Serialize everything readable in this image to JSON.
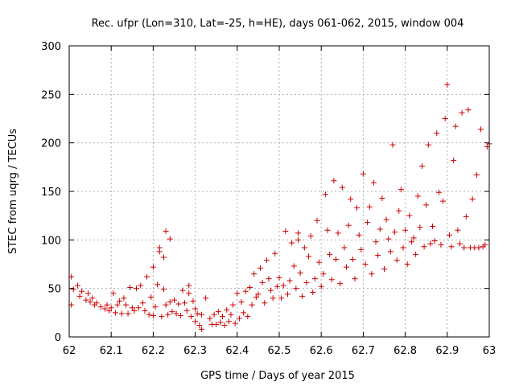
{
  "chart_data": {
    "type": "scatter",
    "title": "Rec. ufpr (Lon=310, Lat=-25, h=HE), days 061-062, 2015, window 004",
    "xlabel": "GPS time / Days of year 2015",
    "ylabel": "STEC from uqrg / TECUs",
    "xlim": [
      62,
      63
    ],
    "ylim": [
      0,
      300
    ],
    "x_ticks": [
      "62",
      "62.1",
      "62.2",
      "62.3",
      "62.4",
      "62.5",
      "62.6",
      "62.7",
      "62.8",
      "62.9",
      "63"
    ],
    "y_ticks": [
      "0",
      "50",
      "100",
      "150",
      "200",
      "250",
      "300"
    ],
    "grid": true,
    "marker": "+",
    "color": "#cc0000",
    "series": [
      {
        "points": [
          [
            62.005,
            62
          ],
          [
            62.005,
            33
          ],
          [
            62.01,
            49
          ],
          [
            62.02,
            53
          ],
          [
            62.025,
            42
          ],
          [
            62.03,
            47
          ],
          [
            62.04,
            38
          ],
          [
            62.045,
            45
          ],
          [
            62.05,
            36
          ],
          [
            62.055,
            40
          ],
          [
            62.06,
            33
          ],
          [
            62.065,
            35
          ],
          [
            62.075,
            31
          ],
          [
            62.085,
            29
          ],
          [
            62.09,
            33
          ],
          [
            62.095,
            27
          ],
          [
            62.1,
            30
          ],
          [
            62.105,
            45
          ],
          [
            62.11,
            25
          ],
          [
            62.115,
            33
          ],
          [
            62.12,
            37
          ],
          [
            62.125,
            24
          ],
          [
            62.13,
            40
          ],
          [
            62.135,
            33
          ],
          [
            62.14,
            24
          ],
          [
            62.145,
            51
          ],
          [
            62.15,
            30
          ],
          [
            62.155,
            27
          ],
          [
            62.16,
            50
          ],
          [
            62.165,
            30
          ],
          [
            62.17,
            53
          ],
          [
            62.175,
            35
          ],
          [
            62.18,
            27
          ],
          [
            62.185,
            62
          ],
          [
            62.19,
            23
          ],
          [
            62.195,
            41
          ],
          [
            62.2,
            72
          ],
          [
            62.2,
            22
          ],
          [
            62.205,
            31
          ],
          [
            62.21,
            54
          ],
          [
            62.215,
            88
          ],
          [
            62.215,
            92
          ],
          [
            62.22,
            21
          ],
          [
            62.225,
            82
          ],
          [
            62.225,
            49
          ],
          [
            62.23,
            109
          ],
          [
            62.23,
            33
          ],
          [
            62.235,
            23
          ],
          [
            62.24,
            101
          ],
          [
            62.24,
            36
          ],
          [
            62.245,
            26
          ],
          [
            62.25,
            38
          ],
          [
            62.255,
            24
          ],
          [
            62.26,
            34
          ],
          [
            62.265,
            22
          ],
          [
            62.27,
            48
          ],
          [
            62.275,
            35
          ],
          [
            62.28,
            27
          ],
          [
            62.285,
            53
          ],
          [
            62.285,
            45
          ],
          [
            62.29,
            21
          ],
          [
            62.295,
            37
          ],
          [
            62.3,
            29
          ],
          [
            62.3,
            16
          ],
          [
            62.305,
            24
          ],
          [
            62.31,
            12
          ],
          [
            62.315,
            23
          ],
          [
            62.315,
            8
          ],
          [
            62.325,
            40
          ],
          [
            62.335,
            19
          ],
          [
            62.34,
            13
          ],
          [
            62.345,
            23
          ],
          [
            62.35,
            13
          ],
          [
            62.355,
            26
          ],
          [
            62.36,
            15
          ],
          [
            62.365,
            21
          ],
          [
            62.37,
            12
          ],
          [
            62.375,
            28
          ],
          [
            62.38,
            16
          ],
          [
            62.385,
            23
          ],
          [
            62.39,
            33
          ],
          [
            62.395,
            14
          ],
          [
            62.4,
            45
          ],
          [
            62.405,
            19
          ],
          [
            62.41,
            36
          ],
          [
            62.415,
            25
          ],
          [
            62.42,
            47
          ],
          [
            62.425,
            21
          ],
          [
            62.43,
            51
          ],
          [
            62.435,
            33
          ],
          [
            62.44,
            65
          ],
          [
            62.445,
            41
          ],
          [
            62.45,
            44
          ],
          [
            62.455,
            71
          ],
          [
            62.46,
            56
          ],
          [
            62.465,
            35
          ],
          [
            62.47,
            79
          ],
          [
            62.475,
            60
          ],
          [
            62.48,
            48
          ],
          [
            62.485,
            40
          ],
          [
            62.49,
            86
          ],
          [
            62.495,
            52
          ],
          [
            62.5,
            61
          ],
          [
            62.505,
            40
          ],
          [
            62.51,
            53
          ],
          [
            62.515,
            109
          ],
          [
            62.52,
            44
          ],
          [
            62.525,
            58
          ],
          [
            62.53,
            97
          ],
          [
            62.535,
            73
          ],
          [
            62.54,
            50
          ],
          [
            62.545,
            107
          ],
          [
            62.545,
            100
          ],
          [
            62.55,
            66
          ],
          [
            62.555,
            42
          ],
          [
            62.56,
            92
          ],
          [
            62.565,
            56
          ],
          [
            62.57,
            83
          ],
          [
            62.575,
            104
          ],
          [
            62.58,
            46
          ],
          [
            62.585,
            60
          ],
          [
            62.59,
            120
          ],
          [
            62.595,
            77
          ],
          [
            62.6,
            52
          ],
          [
            62.605,
            65
          ],
          [
            62.61,
            147
          ],
          [
            62.615,
            110
          ],
          [
            62.62,
            85
          ],
          [
            62.625,
            59
          ],
          [
            62.63,
            161
          ],
          [
            62.635,
            80
          ],
          [
            62.64,
            107
          ],
          [
            62.645,
            55
          ],
          [
            62.65,
            154
          ],
          [
            62.655,
            92
          ],
          [
            62.66,
            72
          ],
          [
            62.665,
            115
          ],
          [
            62.67,
            142
          ],
          [
            62.675,
            80
          ],
          [
            62.68,
            60
          ],
          [
            62.685,
            133
          ],
          [
            62.69,
            105
          ],
          [
            62.695,
            90
          ],
          [
            62.7,
            168
          ],
          [
            62.705,
            75
          ],
          [
            62.71,
            118
          ],
          [
            62.715,
            134
          ],
          [
            62.72,
            65
          ],
          [
            62.725,
            159
          ],
          [
            62.73,
            98
          ],
          [
            62.735,
            84
          ],
          [
            62.74,
            111
          ],
          [
            62.745,
            143
          ],
          [
            62.75,
            70
          ],
          [
            62.755,
            121
          ],
          [
            62.76,
            101
          ],
          [
            62.765,
            88
          ],
          [
            62.77,
            198
          ],
          [
            62.775,
            108
          ],
          [
            62.78,
            79
          ],
          [
            62.785,
            130
          ],
          [
            62.79,
            152
          ],
          [
            62.795,
            92
          ],
          [
            62.8,
            110
          ],
          [
            62.805,
            75
          ],
          [
            62.81,
            125
          ],
          [
            62.815,
            98
          ],
          [
            62.82,
            102
          ],
          [
            62.825,
            85
          ],
          [
            62.83,
            145
          ],
          [
            62.835,
            113
          ],
          [
            62.84,
            176
          ],
          [
            62.845,
            93
          ],
          [
            62.85,
            136
          ],
          [
            62.855,
            198
          ],
          [
            62.86,
            96
          ],
          [
            62.865,
            114
          ],
          [
            62.87,
            99
          ],
          [
            62.875,
            210
          ],
          [
            62.88,
            149
          ],
          [
            62.885,
            95
          ],
          [
            62.89,
            140
          ],
          [
            62.895,
            225
          ],
          [
            62.9,
            260
          ],
          [
            62.905,
            105
          ],
          [
            62.91,
            93
          ],
          [
            62.915,
            182
          ],
          [
            62.92,
            217
          ],
          [
            62.925,
            110
          ],
          [
            62.93,
            96
          ],
          [
            62.935,
            231
          ],
          [
            62.94,
            92
          ],
          [
            62.945,
            124
          ],
          [
            62.95,
            234
          ],
          [
            62.955,
            92
          ],
          [
            62.96,
            142
          ],
          [
            62.965,
            92
          ],
          [
            62.97,
            167
          ],
          [
            62.975,
            92
          ],
          [
            62.98,
            214
          ],
          [
            62.985,
            93
          ],
          [
            62.99,
            95
          ],
          [
            62.995,
            196
          ],
          [
            63.0,
            199
          ]
        ]
      }
    ]
  }
}
